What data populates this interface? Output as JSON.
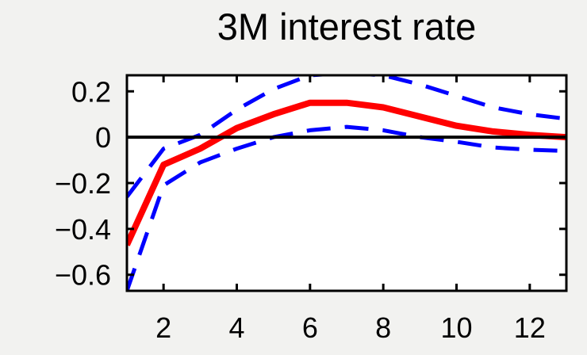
{
  "chart_data": {
    "type": "line",
    "title": "3M interest rate",
    "xlabel": "",
    "ylabel": "",
    "xlim": [
      1,
      13
    ],
    "ylim": [
      -0.67,
      0.27
    ],
    "xticks": [
      2,
      4,
      6,
      8,
      10,
      12
    ],
    "xtick_labels": [
      "2",
      "4",
      "6",
      "8",
      "10",
      "12"
    ],
    "yticks": [
      0.2,
      0,
      -0.2,
      -0.4,
      -0.6
    ],
    "ytick_labels": [
      "0.2",
      "0",
      "−0.2",
      "−0.4",
      "−0.6"
    ],
    "grid": false,
    "legend": "none",
    "reference_line": {
      "y": 0,
      "color": "#000000"
    },
    "series": [
      {
        "role": "estimate",
        "color": "#ff0000",
        "style": "solid",
        "x": [
          1,
          2,
          3,
          4,
          5,
          6,
          7,
          8,
          9,
          10,
          11,
          12,
          13
        ],
        "y": [
          -0.47,
          -0.12,
          -0.05,
          0.04,
          0.1,
          0.15,
          0.15,
          0.13,
          0.09,
          0.05,
          0.025,
          0.01,
          0.0
        ]
      },
      {
        "role": "upper-band",
        "color": "#0000ff",
        "style": "dashed",
        "x": [
          1,
          2,
          3,
          4,
          5,
          6,
          7,
          8,
          9,
          10,
          11,
          12,
          13
        ],
        "y": [
          -0.26,
          -0.05,
          0.01,
          0.12,
          0.21,
          0.27,
          0.28,
          0.27,
          0.23,
          0.18,
          0.13,
          0.1,
          0.08
        ]
      },
      {
        "role": "lower-band",
        "color": "#0000ff",
        "style": "dashed",
        "x": [
          1,
          2,
          3,
          4,
          5,
          6,
          7,
          8,
          9,
          10,
          11,
          12,
          13
        ],
        "y": [
          -0.67,
          -0.21,
          -0.11,
          -0.05,
          0.0,
          0.03,
          0.045,
          0.03,
          0.0,
          -0.02,
          -0.045,
          -0.055,
          -0.06
        ]
      }
    ]
  }
}
